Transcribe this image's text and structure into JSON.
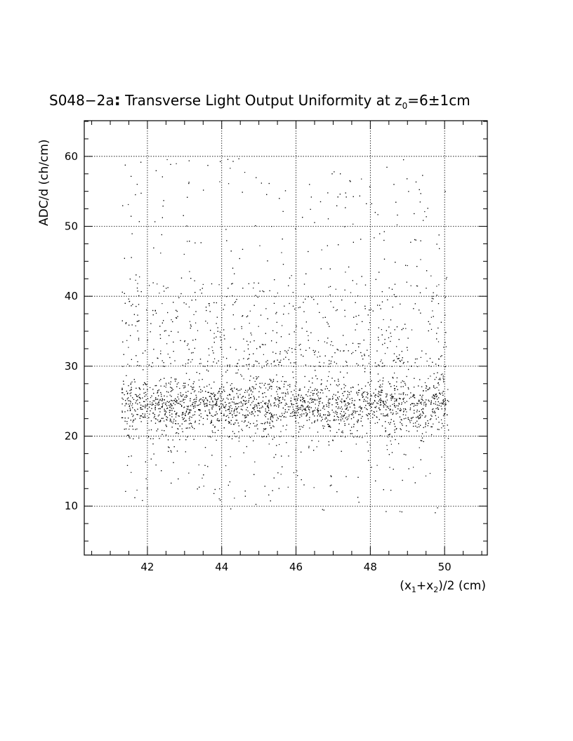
{
  "chart_data": {
    "type": "scatter",
    "title": {
      "main": "S048−2a",
      "sep": ":",
      "rest": " Transverse Light Output Uniformity at z",
      "sub": "0",
      "tail": "=6±1cm"
    },
    "xlabel": {
      "p1": "(x",
      "s1": "1",
      "p2": "+x",
      "s2": "2",
      "p3": ")/2 (cm)"
    },
    "ylabel": "ADC/d (ch/cm)",
    "xlim": [
      40.3,
      51.15
    ],
    "ylim": [
      3.0,
      65.1
    ],
    "x_ticks": [
      "42",
      "44",
      "46",
      "48",
      "50"
    ],
    "x_tick_values": [
      42,
      44,
      46,
      48,
      50
    ],
    "y_ticks": [
      "10",
      "20",
      "30",
      "40",
      "50",
      "60"
    ],
    "y_tick_values": [
      10,
      20,
      30,
      40,
      50,
      60
    ],
    "grid": true,
    "point_color": "#000000",
    "point_count": 5200,
    "distribution": {
      "x_range": [
        41.3,
        50.1
      ],
      "core_y_range": [
        20,
        30
      ],
      "core_center_y": 24.5,
      "halo_y_range": [
        30,
        42
      ],
      "sparse_high_y_range": [
        42,
        60
      ],
      "low_tail_y_range": [
        9,
        20
      ]
    }
  }
}
